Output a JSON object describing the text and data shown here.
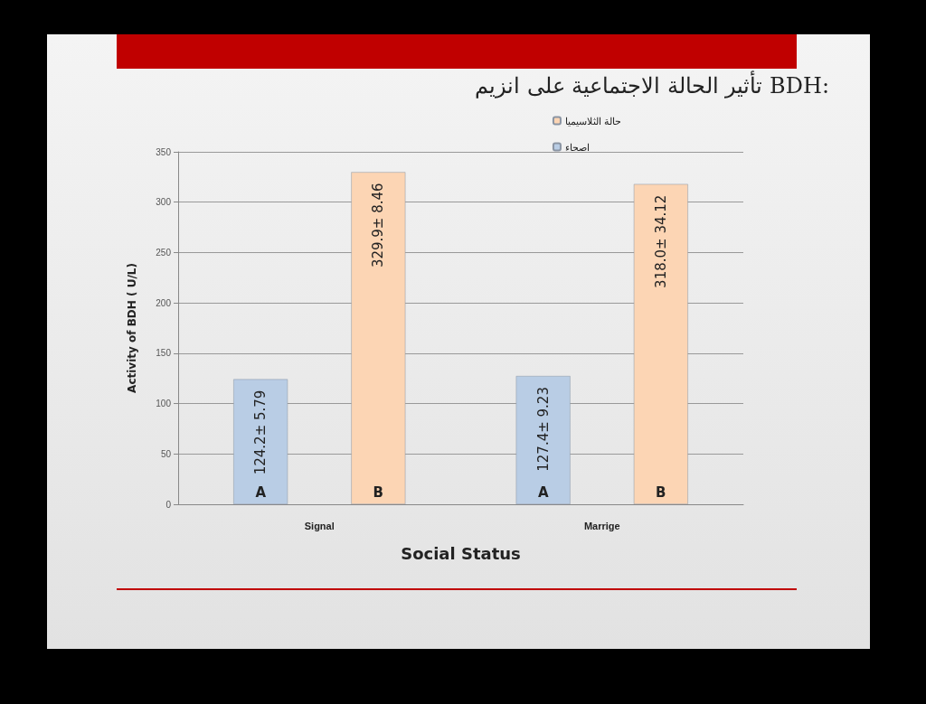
{
  "chart_data": {
    "type": "bar",
    "title": "تأثير الحالة الاجتماعية على انزيم BDH:",
    "categories": [
      "Signal",
      "Marrige"
    ],
    "series": [
      {
        "name": "اصحاء",
        "color": "#b9cde5",
        "values": [
          124.2,
          127.4
        ],
        "value_labels": [
          "124.2± 5.79",
          "127.4± 9.23"
        ]
      },
      {
        "name": "حالة الثلاسيميا",
        "color": "#fcd5b4",
        "values": [
          329.9,
          318.0
        ],
        "value_labels": [
          "329.9± 8.46",
          "318.0± 34.12"
        ]
      }
    ],
    "xlabel": "Social Status",
    "ylabel": "Activity of BDH ( U/L)",
    "ylim": [
      0,
      350
    ],
    "yticks": [
      0,
      50,
      100,
      150,
      200,
      250,
      300,
      350
    ],
    "annotations": [
      "A",
      "B",
      "A",
      "B"
    ],
    "grid": "y",
    "legend": "top right"
  }
}
